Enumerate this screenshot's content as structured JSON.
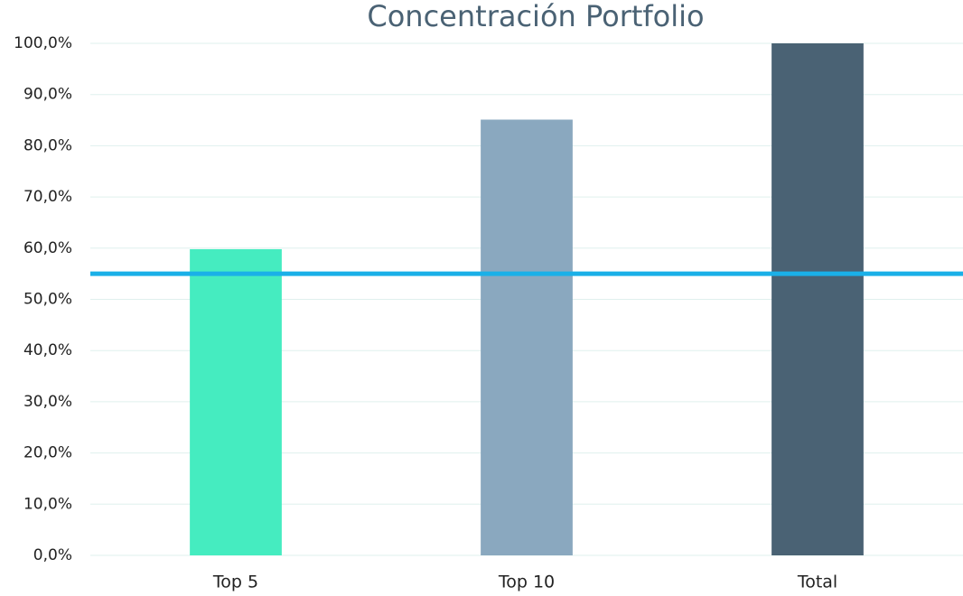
{
  "chart_data": {
    "type": "bar",
    "title": "Concentración Portfolio",
    "categories": [
      "Top 5",
      "Top 10",
      "Total"
    ],
    "values": [
      59.8,
      85.1,
      100
    ],
    "colors": [
      "#45ecc0",
      "#8aa8bf",
      "#4a6274"
    ],
    "reference_line": {
      "value": 55,
      "color": "#1ab0e8"
    },
    "ylim": [
      0,
      100
    ],
    "yticks": [
      {
        "value": 0,
        "label": "0,0%"
      },
      {
        "value": 10,
        "label": "10,0%"
      },
      {
        "value": 20,
        "label": "20,0%"
      },
      {
        "value": 30,
        "label": "30,0%"
      },
      {
        "value": 40,
        "label": "40,0%"
      },
      {
        "value": 50,
        "label": "50,0%"
      },
      {
        "value": 60,
        "label": "60,0%"
      },
      {
        "value": 70,
        "label": "70,0%"
      },
      {
        "value": 80,
        "label": "80,0%"
      },
      {
        "value": 90,
        "label": "90,0%"
      },
      {
        "value": 100,
        "label": "100,0%"
      }
    ],
    "grid": true
  }
}
